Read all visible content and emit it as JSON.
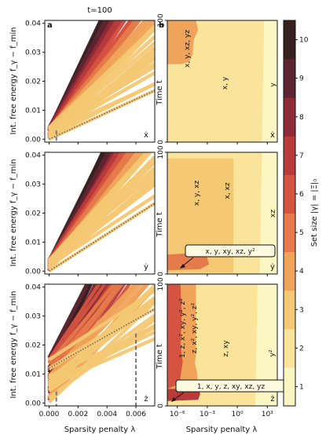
{
  "figure": {
    "time_note": "t=100",
    "panel_a_letter": "a",
    "panel_b_letter": "b",
    "ylabel_left": "Int. free energy f_γ − f_min",
    "ylabel_right": "Time t",
    "xlabel_left": "Sparsity penalty λ",
    "xlabel_right": "Sparsity penalty λ",
    "colorbar_label": "Set size |γ| = |Ξ|₀",
    "row_markers": [
      "ẋ",
      "ẏ",
      "ż"
    ],
    "region_labels": {
      "x": [
        "x, y, xz, yz",
        "x, y",
        "y"
      ],
      "y": [
        "x, y, xz",
        "x, xz",
        "xz"
      ],
      "z": [
        "1, z, x², xy, y², z²",
        "z, x², xy, y², z²",
        "z, xy",
        "y²"
      ]
    },
    "annotation_y": "x, y, xy, xz, y²",
    "annotation_z": "1, x, y, z, xy, xz, yz"
  },
  "chart_data": [
    {
      "type": "line",
      "panel": "a",
      "equation": "ẋ",
      "xlabel": "Sparsity penalty λ",
      "ylabel": "Int. free energy f_γ − f_min",
      "xlim": [
        -0.0003,
        0.0073
      ],
      "ylim": [
        -0.001,
        0.041
      ],
      "xticks": [
        "0.000",
        "0.002",
        "0.004",
        "0.006"
      ],
      "yticks": [
        "0.00",
        "0.01",
        "0.02",
        "0.03",
        "0.04"
      ],
      "optimal_line": {
        "slope": 2.3,
        "intercept": 0.0
      },
      "marked_lambda": 0.0005,
      "line_fan": {
        "count": 55,
        "slope_min": 2.3,
        "slope_max": 10.5,
        "intercept_min": 0.0,
        "intercept_max": 0.004
      }
    },
    {
      "type": "line",
      "panel": "a",
      "equation": "ẏ",
      "xlabel": "Sparsity penalty λ",
      "ylabel": "Int. free energy f_γ − f_min",
      "xlim": [
        -0.0003,
        0.0073
      ],
      "ylim": [
        -0.001,
        0.041
      ],
      "xticks": [
        "0.000",
        "0.002",
        "0.004",
        "0.006"
      ],
      "yticks": [
        "0.00",
        "0.01",
        "0.02",
        "0.03",
        "0.04"
      ],
      "optimal_line": {
        "slope": 3.2,
        "intercept": 0.0
      },
      "line_fan": {
        "count": 55,
        "slope_min": 3.2,
        "slope_max": 10.5,
        "intercept_min": 0.0,
        "intercept_max": 0.004
      }
    },
    {
      "type": "line",
      "panel": "a",
      "equation": "ż",
      "xlabel": "Sparsity penalty λ",
      "ylabel": "Int. free energy f_γ − f_min",
      "xlim": [
        -0.0003,
        0.0073
      ],
      "ylim": [
        -0.001,
        0.041
      ],
      "xticks": [
        "0.000",
        "0.002",
        "0.004",
        "0.006"
      ],
      "yticks": [
        "0.00",
        "0.01",
        "0.02",
        "0.03",
        "0.04"
      ],
      "optimal_line": {
        "slope": 2.8,
        "intercept": 0.012
      },
      "marked_lambda": [
        0.0005,
        0.006
      ],
      "line_fan": {
        "count": 60,
        "slope_min": 2.0,
        "slope_max": 10.5,
        "intercept_min": 0.0,
        "intercept_max": 0.016
      }
    },
    {
      "type": "heatmap",
      "panel": "b",
      "equation": "ẋ",
      "xlabel": "Sparsity penalty λ",
      "ylabel": "Time t",
      "xscale": "log",
      "xlim_log10": [
        -7,
        4
      ],
      "ylim": [
        0,
        100
      ],
      "xticks": [
        "10⁻⁶",
        "10⁻³",
        "10⁰",
        "10³"
      ],
      "yticks": [
        "0",
        "100"
      ],
      "regions": [
        {
          "label": "x, y, xz, yz",
          "set_size": 4
        },
        {
          "label": "x, y",
          "set_size": 2
        },
        {
          "label": "y",
          "set_size": 1
        }
      ]
    },
    {
      "type": "heatmap",
      "panel": "b",
      "equation": "ẏ",
      "xlabel": "Sparsity penalty λ",
      "ylabel": "Time t",
      "xscale": "log",
      "xlim_log10": [
        -7,
        4
      ],
      "ylim": [
        0,
        100
      ],
      "xticks": [
        "10⁻⁶",
        "10⁻³",
        "10⁰",
        "10³"
      ],
      "yticks": [
        "0",
        "100"
      ],
      "regions": [
        {
          "label": "x, y, xy, xz, y²",
          "set_size": 5
        },
        {
          "label": "x, y, xz",
          "set_size": 3
        },
        {
          "label": "x, xz",
          "set_size": 2
        },
        {
          "label": "xz",
          "set_size": 1
        }
      ]
    },
    {
      "type": "heatmap",
      "panel": "b",
      "equation": "ż",
      "xlabel": "Sparsity penalty λ",
      "ylabel": "Time t",
      "xscale": "log",
      "xlim_log10": [
        -7,
        4
      ],
      "ylim": [
        0,
        100
      ],
      "xticks": [
        "10⁻⁶",
        "10⁻³",
        "10⁰",
        "10³"
      ],
      "yticks": [
        "0",
        "100"
      ],
      "regions": [
        {
          "label": "1, x, y, z, xy, xz, yz",
          "set_size": 7
        },
        {
          "label": "1, z, x², xy, y², z²",
          "set_size": 6
        },
        {
          "label": "z, x², xy, y², z²",
          "set_size": 5
        },
        {
          "label": "z, xy",
          "set_size": 2
        },
        {
          "label": "y²",
          "set_size": 1
        }
      ]
    },
    {
      "type": "colorbar",
      "label": "Set size |γ| = |Ξ|₀",
      "range": [
        0.5,
        10.5
      ],
      "ticks": [
        "1",
        "2",
        "3",
        "4",
        "5",
        "6",
        "7",
        "8",
        "9",
        "10"
      ],
      "colors": [
        "#fcf6c3",
        "#fae39a",
        "#f5c874",
        "#f0a45a",
        "#e57a4a",
        "#d65241",
        "#b83a3a",
        "#8f2b38",
        "#5e2431",
        "#372020"
      ]
    }
  ]
}
